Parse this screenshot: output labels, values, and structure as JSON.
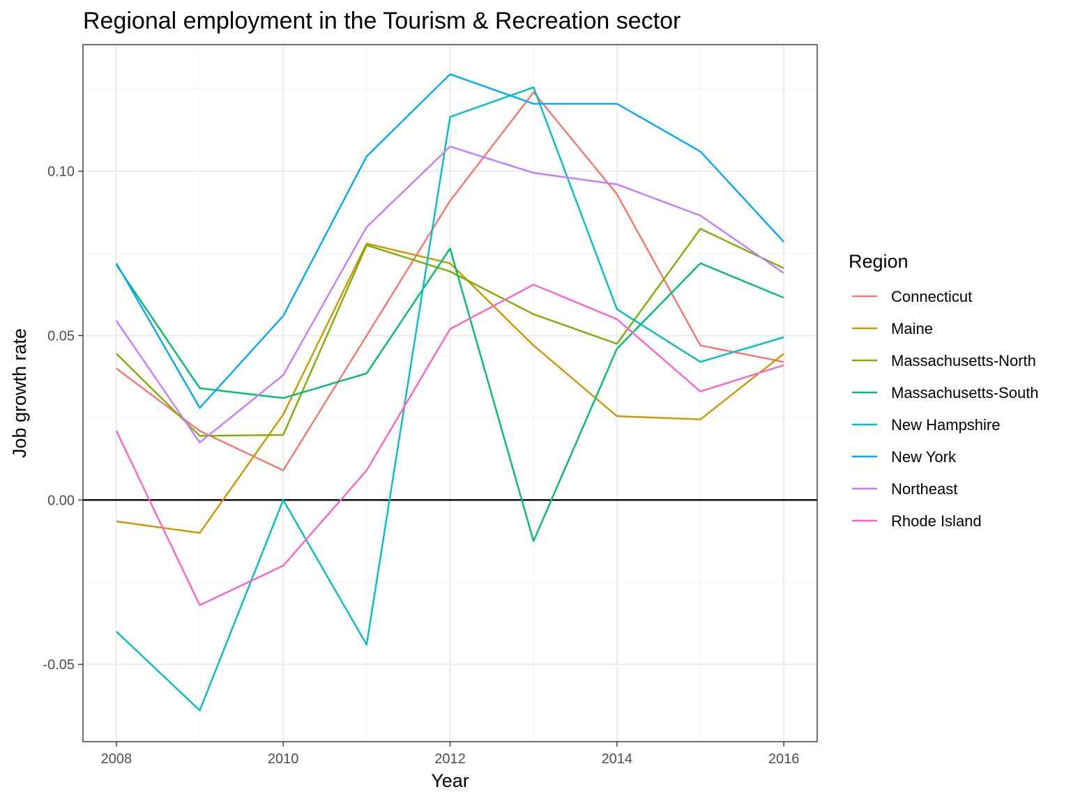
{
  "chart_data": {
    "type": "line",
    "title": "Regional employment in the Tourism & Recreation sector",
    "xlabel": "Year",
    "ylabel": "Job growth rate",
    "xlim": [
      2007.6,
      2016.4
    ],
    "ylim": [
      -0.0735,
      0.1385
    ],
    "x_ticks": [
      2008,
      2010,
      2012,
      2014,
      2016
    ],
    "x_tick_labels": [
      "2008",
      "2010",
      "2012",
      "2014",
      "2016"
    ],
    "y_ticks": [
      -0.05,
      0,
      0.05,
      0.1
    ],
    "y_tick_labels": [
      "-0.05",
      "0.00",
      "0.05",
      "0.10"
    ],
    "grid": true,
    "reference_line_y": 0,
    "legend_title": "Region",
    "legend_position": "right",
    "x": [
      2008,
      2009,
      2010,
      2011,
      2012,
      2013,
      2014,
      2015,
      2016
    ],
    "series": [
      {
        "name": "Connecticut",
        "color": "#F8766D",
        "values": [
          0.04,
          0.021,
          0.009,
          0.05,
          0.091,
          0.124,
          0.093,
          0.047,
          0.042
        ]
      },
      {
        "name": "Maine",
        "color": "#CD9600",
        "values": [
          -0.0065,
          -0.01,
          0.026,
          0.078,
          0.072,
          0.047,
          0.0255,
          0.0245,
          0.0445
        ]
      },
      {
        "name": "Massachusetts-North",
        "color": "#7CAE00",
        "values": [
          0.0445,
          0.0195,
          0.0198,
          0.0775,
          0.0695,
          0.0565,
          0.0475,
          0.0825,
          0.0705
        ]
      },
      {
        "name": "Massachusetts-South",
        "color": "#00BE67",
        "values": [
          0.0715,
          0.034,
          0.031,
          0.0385,
          0.0765,
          -0.0125,
          0.046,
          0.072,
          0.0615
        ]
      },
      {
        "name": "New Hampshire",
        "color": "#00BFC4",
        "values": [
          -0.04,
          -0.064,
          0.0,
          -0.044,
          0.1165,
          0.1255,
          0.058,
          0.042,
          0.0495
        ]
      },
      {
        "name": "New York",
        "color": "#00A9FF",
        "values": [
          0.072,
          0.028,
          0.056,
          0.1045,
          0.1295,
          0.1205,
          0.1205,
          0.106,
          0.0785
        ]
      },
      {
        "name": "Northeast",
        "color": "#C77CFF",
        "values": [
          0.0545,
          0.0175,
          0.038,
          0.083,
          0.1075,
          0.0995,
          0.096,
          0.0865,
          0.069
        ]
      },
      {
        "name": "Rhode Island",
        "color": "#FF61CC",
        "values": [
          0.021,
          -0.032,
          -0.02,
          0.009,
          0.052,
          0.0655,
          0.055,
          0.033,
          0.041
        ]
      }
    ]
  }
}
